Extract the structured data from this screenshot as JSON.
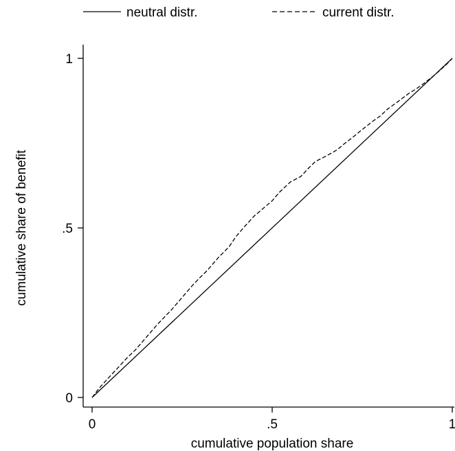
{
  "chart_data": {
    "type": "line",
    "xlabel": "cumulative population share",
    "ylabel": "cumulative share of benefit",
    "xlim": [
      0,
      1
    ],
    "ylim": [
      0,
      1
    ],
    "x_ticks": [
      {
        "value": 0,
        "label": "0"
      },
      {
        "value": 0.5,
        "label": ".5"
      },
      {
        "value": 1,
        "label": "1"
      }
    ],
    "y_ticks": [
      {
        "value": 0,
        "label": "0"
      },
      {
        "value": 0.5,
        "label": ".5"
      },
      {
        "value": 1,
        "label": "1"
      }
    ],
    "grid": false,
    "legend_position": "top",
    "series": [
      {
        "name": "neutral distr.",
        "style": "solid",
        "color": "#000000",
        "x": [
          0,
          1
        ],
        "y": [
          0,
          1
        ]
      },
      {
        "name": "current distr.",
        "style": "dashed",
        "color": "#000000",
        "x": [
          0,
          0.02,
          0.05,
          0.08,
          0.1,
          0.12,
          0.15,
          0.18,
          0.2,
          0.22,
          0.25,
          0.28,
          0.3,
          0.32,
          0.35,
          0.38,
          0.4,
          0.42,
          0.45,
          0.48,
          0.5,
          0.52,
          0.55,
          0.58,
          0.6,
          0.62,
          0.65,
          0.68,
          0.7,
          0.72,
          0.75,
          0.78,
          0.8,
          0.82,
          0.85,
          0.88,
          0.9,
          0.92,
          0.95,
          0.98,
          1
        ],
        "y": [
          0,
          0.028,
          0.063,
          0.097,
          0.12,
          0.14,
          0.177,
          0.214,
          0.236,
          0.258,
          0.295,
          0.332,
          0.354,
          0.375,
          0.412,
          0.444,
          0.475,
          0.5,
          0.535,
          0.562,
          0.58,
          0.605,
          0.635,
          0.652,
          0.675,
          0.696,
          0.712,
          0.73,
          0.748,
          0.764,
          0.79,
          0.815,
          0.83,
          0.85,
          0.873,
          0.897,
          0.91,
          0.925,
          0.95,
          0.978,
          1
        ]
      }
    ]
  }
}
